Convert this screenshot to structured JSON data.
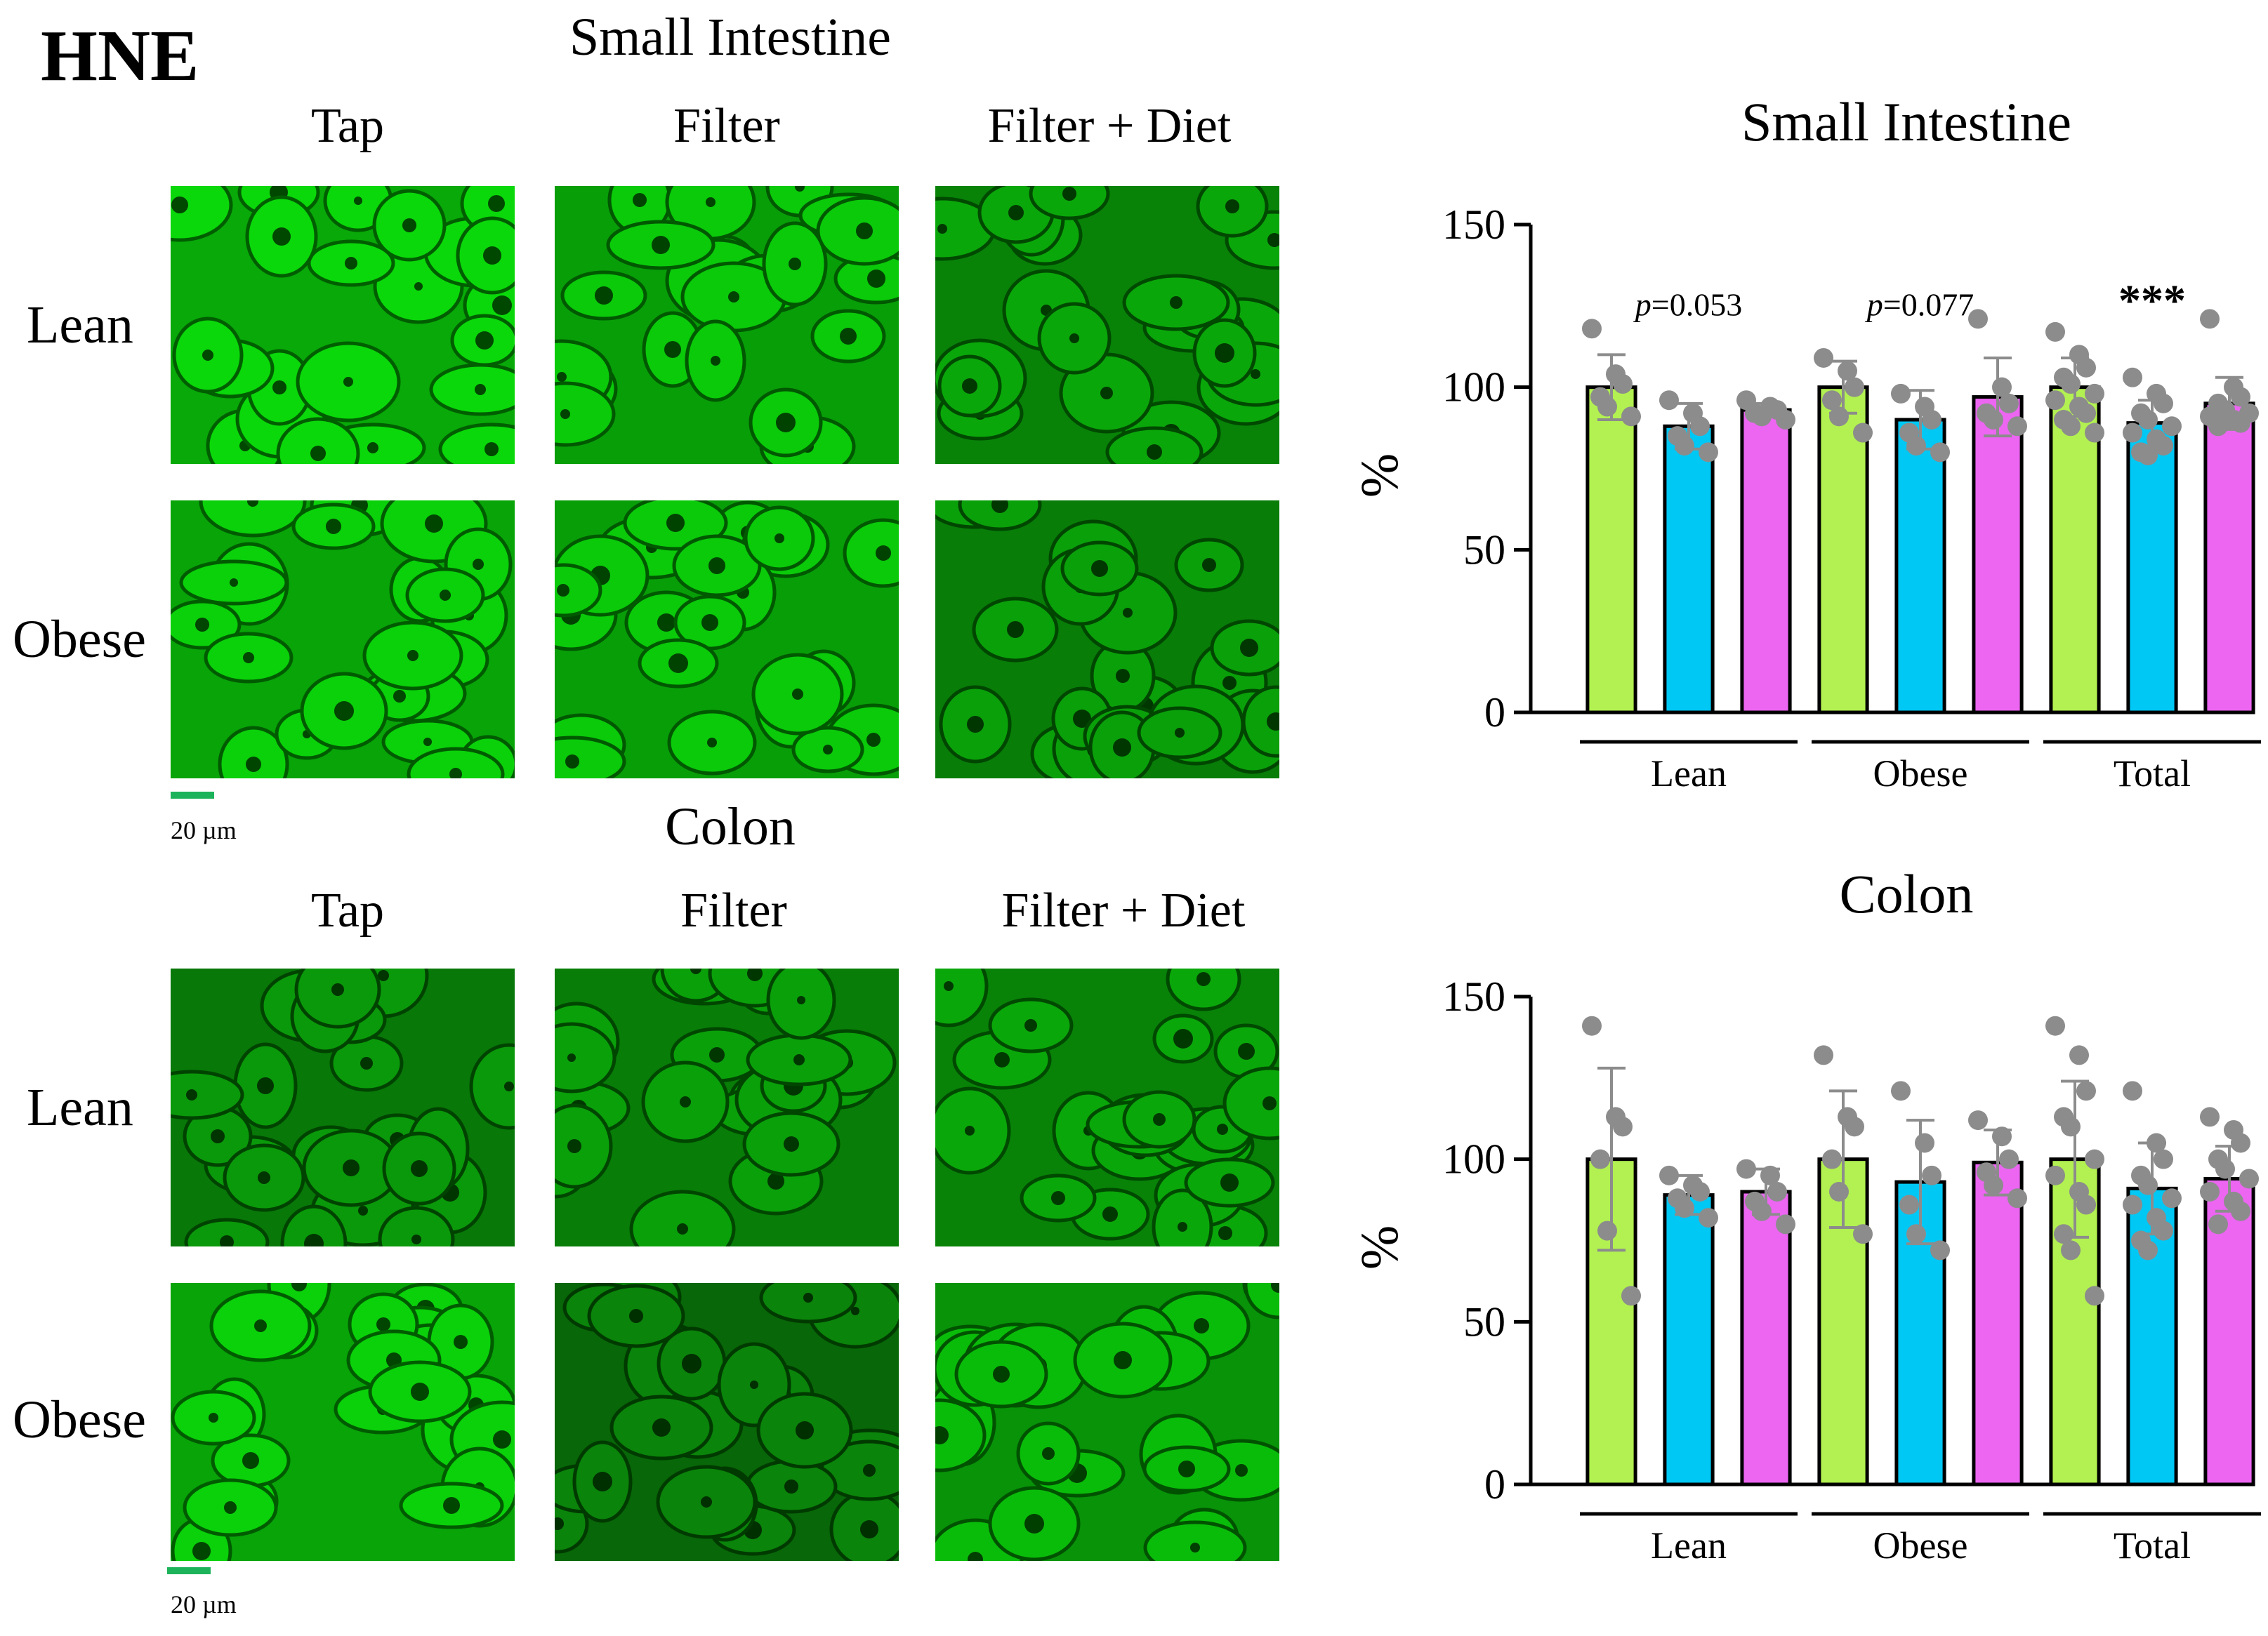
{
  "figure_label": "HNE",
  "small_intestine": {
    "title": "Small Intestine",
    "columns": [
      "Tap",
      "Filter",
      "Filter + Diet"
    ],
    "rows": [
      "Lean",
      "Obese"
    ],
    "scale_text": "20 µm"
  },
  "colon": {
    "title": "Colon",
    "columns": [
      "Tap",
      "Filter",
      "Filter + Diet"
    ],
    "rows": [
      "Lean",
      "Obese"
    ],
    "scale_text": "20 µm"
  },
  "colors": {
    "tap": "#b2f151",
    "filter": "#00c8f5",
    "filter_diet": "#ec66f2",
    "dot": "#8c8c8c",
    "error": "#8c8c8c",
    "micrograph": "#14b814"
  },
  "chart_data": [
    {
      "type": "bar",
      "title": "Small Intestine",
      "ylabel": "%",
      "ylim": [
        0,
        150
      ],
      "yticks": [
        0,
        50,
        100,
        150
      ],
      "groups": [
        "Lean",
        "Obese",
        "Total"
      ],
      "series_colors": [
        "#b2f151",
        "#00c8f5",
        "#ec66f2"
      ],
      "bars": [
        {
          "group": "Lean",
          "value": 100,
          "err": 10,
          "points": [
            118,
            104,
            101,
            97,
            94,
            91
          ]
        },
        {
          "group": "Lean",
          "value": 88,
          "err": 7,
          "points": [
            96,
            92,
            88,
            85,
            82,
            80
          ]
        },
        {
          "group": "Lean",
          "value": 93,
          "err": 2,
          "points": [
            96,
            94,
            93,
            92,
            91,
            90
          ]
        },
        {
          "group": "Obese",
          "value": 100,
          "err": 8,
          "points": [
            109,
            105,
            100,
            96,
            91,
            86
          ]
        },
        {
          "group": "Obese",
          "value": 90,
          "err": 9,
          "points": [
            98,
            94,
            90,
            86,
            82,
            80
          ]
        },
        {
          "group": "Obese",
          "value": 97,
          "err": 12,
          "points": [
            121,
            100,
            95,
            92,
            90,
            88
          ]
        },
        {
          "group": "Total",
          "value": 100,
          "err": 9,
          "points": [
            117,
            110,
            106,
            103,
            101,
            98,
            96,
            94,
            92,
            90,
            88,
            86
          ]
        },
        {
          "group": "Total",
          "value": 89,
          "err": 7,
          "points": [
            103,
            98,
            95,
            92,
            90,
            88,
            86,
            84,
            82,
            80,
            79
          ]
        },
        {
          "group": "Total",
          "value": 95,
          "err": 8,
          "points": [
            121,
            100,
            97,
            95,
            93,
            92,
            91,
            90,
            89,
            88
          ]
        }
      ],
      "annotations": [
        {
          "group": "Lean",
          "text_italic": "p",
          "text": "=0.053"
        },
        {
          "group": "Obese",
          "text_italic": "p",
          "text": "=0.077"
        },
        {
          "group": "Total",
          "text": "***"
        }
      ]
    },
    {
      "type": "bar",
      "title": "Colon",
      "ylabel": "%",
      "ylim": [
        0,
        150
      ],
      "yticks": [
        0,
        50,
        100,
        150
      ],
      "groups": [
        "Lean",
        "Obese",
        "Total"
      ],
      "series_colors": [
        "#b2f151",
        "#00c8f5",
        "#ec66f2"
      ],
      "bars": [
        {
          "group": "Lean",
          "value": 100,
          "err": 28,
          "points": [
            141,
            113,
            110,
            100,
            78,
            58
          ]
        },
        {
          "group": "Lean",
          "value": 89,
          "err": 6,
          "points": [
            95,
            92,
            90,
            88,
            85,
            82
          ]
        },
        {
          "group": "Lean",
          "value": 90,
          "err": 7,
          "points": [
            97,
            95,
            90,
            87,
            84,
            80
          ]
        },
        {
          "group": "Obese",
          "value": 100,
          "err": 21,
          "points": [
            132,
            113,
            110,
            100,
            90,
            77
          ]
        },
        {
          "group": "Obese",
          "value": 93,
          "err": 19,
          "points": [
            121,
            105,
            95,
            86,
            77,
            72
          ]
        },
        {
          "group": "Obese",
          "value": 99,
          "err": 10,
          "points": [
            112,
            107,
            100,
            96,
            92,
            88
          ]
        },
        {
          "group": "Total",
          "value": 100,
          "err": 24,
          "points": [
            141,
            132,
            121,
            113,
            110,
            100,
            95,
            90,
            86,
            77,
            72,
            58
          ]
        },
        {
          "group": "Total",
          "value": 91,
          "err": 14,
          "points": [
            121,
            105,
            100,
            95,
            92,
            88,
            86,
            82,
            78,
            75,
            72
          ]
        },
        {
          "group": "Total",
          "value": 94,
          "err": 10,
          "points": [
            113,
            109,
            105,
            100,
            97,
            94,
            90,
            87,
            84,
            80
          ]
        }
      ],
      "annotations": []
    }
  ]
}
